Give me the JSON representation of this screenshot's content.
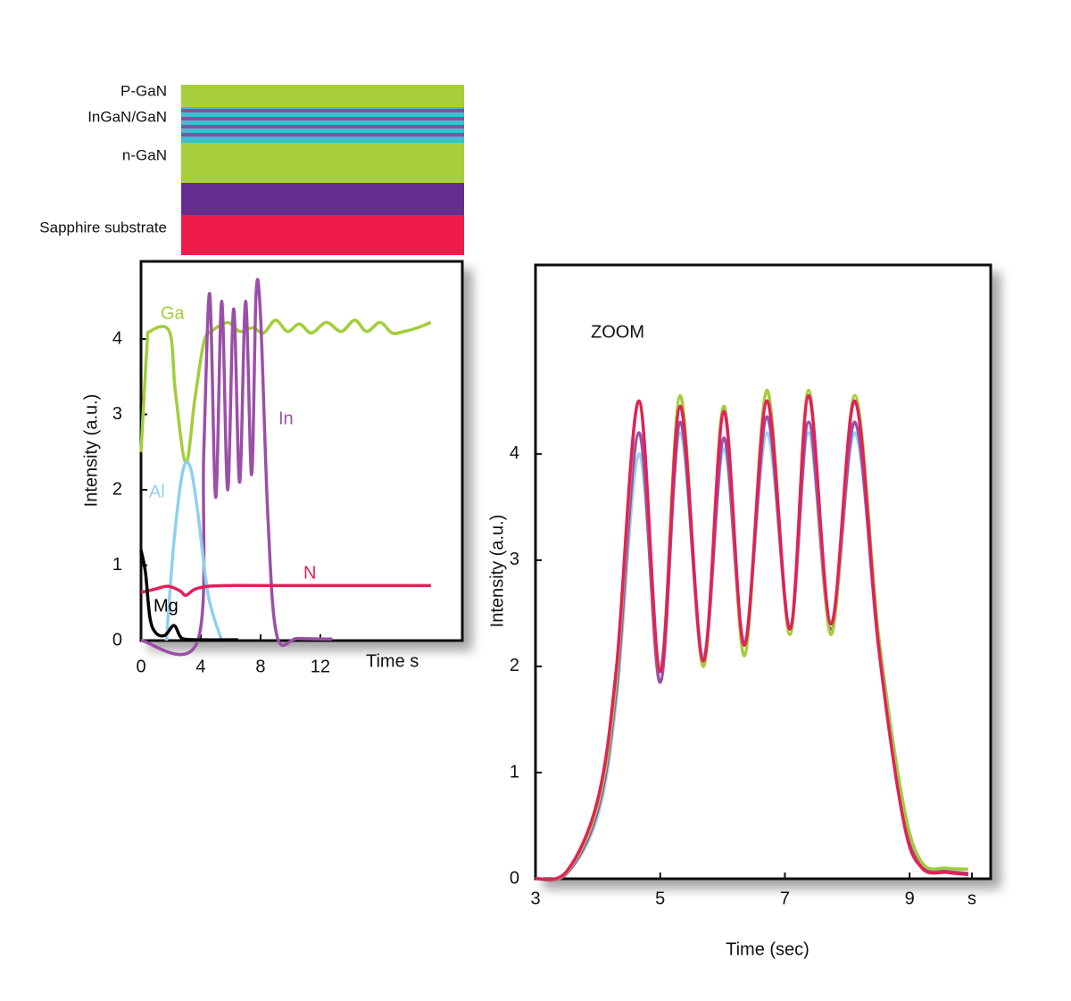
{
  "layers": {
    "labels": [
      "P-GaN",
      "InGaN/GaN",
      "n-GaN",
      "Sapphire substrate"
    ]
  },
  "chart_data": [
    {
      "type": "line",
      "x_label": "Time s",
      "y_label": "Intensity (a.u.)",
      "xlim": [
        0,
        21.5
      ],
      "ylim": [
        0,
        5.03
      ],
      "xticks": [
        0,
        4,
        8,
        12
      ],
      "yticks": [
        0,
        1,
        2,
        3,
        4
      ],
      "series": [
        {
          "name": "Ga",
          "color": "#a2cd3a",
          "x": [
            0,
            0.4,
            0.6,
            1.9,
            2.3,
            3.0,
            3.6,
            4.2,
            4.7,
            5.8,
            6.6,
            7.5,
            8.2,
            9.0,
            9.8,
            10.6,
            11.4,
            12.4,
            13.4,
            14.3,
            15.1,
            16.0,
            16.8,
            17.6,
            18.5,
            19.4
          ],
          "values": [
            2.5,
            3.9,
            4.1,
            4.1,
            3.3,
            2.36,
            3.2,
            3.95,
            4.1,
            4.22,
            4.1,
            4.15,
            4.08,
            4.25,
            4.1,
            4.2,
            4.08,
            4.22,
            4.1,
            4.25,
            4.1,
            4.22,
            4.08,
            4.1,
            4.15,
            4.22
          ]
        },
        {
          "name": "In",
          "color": "#9b4fa8",
          "x": [
            0,
            3.8,
            4.2,
            4.6,
            5.0,
            5.4,
            5.8,
            6.2,
            6.6,
            7.0,
            7.4,
            7.7,
            8.0,
            8.5,
            9.1,
            10.5,
            12.8
          ],
          "values": [
            0,
            0,
            2.5,
            4.6,
            1.9,
            4.5,
            2.0,
            4.4,
            2.1,
            4.5,
            2.2,
            4.6,
            4.3,
            1.6,
            0.06,
            0.03,
            0.02
          ]
        },
        {
          "name": "Al",
          "color": "#8fd0ef",
          "x": [
            1.7,
            2.2,
            2.8,
            3.3,
            3.8,
            4.5,
            5.4
          ],
          "values": [
            0,
            1.3,
            2.25,
            2.3,
            1.7,
            0.6,
            0
          ]
        },
        {
          "name": "N",
          "color": "#e2205a",
          "x": [
            0,
            0.9,
            1.8,
            2.6,
            3.0,
            3.6,
            4.5,
            6.0,
            10,
            19.4
          ],
          "values": [
            0.64,
            0.68,
            0.72,
            0.66,
            0.6,
            0.68,
            0.72,
            0.73,
            0.73,
            0.73
          ]
        },
        {
          "name": "Mg",
          "color": "#000000",
          "x": [
            0,
            0.3,
            0.6,
            1.0,
            1.6,
            2.2,
            2.6,
            2.9,
            4.0,
            6.5
          ],
          "values": [
            1.2,
            0.9,
            0.3,
            0.1,
            0.07,
            0.2,
            0.06,
            0.02,
            0.01,
            0.01
          ]
        }
      ]
    },
    {
      "type": "line",
      "title": "ZOOM",
      "x_label": "Time (sec)",
      "y_label": "Intensity (a.u.)",
      "xlim": [
        3,
        10.3
      ],
      "ylim": [
        0,
        5.78
      ],
      "xticks": [
        3,
        5,
        7,
        9,
        {
          "value": 10,
          "label": "s"
        }
      ],
      "yticks": [
        0,
        1,
        2,
        3,
        4
      ],
      "x": [
        3,
        3.5,
        4,
        4.3,
        4.66,
        5.0,
        5.32,
        5.69,
        6.02,
        6.35,
        6.71,
        7.08,
        7.38,
        7.74,
        8.12,
        8.5,
        8.9,
        9.2,
        9.6,
        9.94
      ],
      "series": [
        {
          "color": "#9fd3ea",
          "values": [
            0,
            0.05,
            0.6,
            1.7,
            4.0,
            2.0,
            4.2,
            2.1,
            4.05,
            2.25,
            4.2,
            2.4,
            4.2,
            2.4,
            4.2,
            2.3,
            0.7,
            0.15,
            0.08,
            0.05
          ]
        },
        {
          "color": "#9b4fa8",
          "values": [
            0,
            0.05,
            0.65,
            1.8,
            4.2,
            1.85,
            4.3,
            2.05,
            4.15,
            2.2,
            4.35,
            2.35,
            4.3,
            2.35,
            4.3,
            2.2,
            0.6,
            0.12,
            0.07,
            0.05
          ]
        },
        {
          "color": "#a2cd3a",
          "values": [
            0,
            0.06,
            0.7,
            1.9,
            4.5,
            1.95,
            4.55,
            2.0,
            4.45,
            2.1,
            4.6,
            2.3,
            4.6,
            2.3,
            4.55,
            2.3,
            0.7,
            0.15,
            0.1,
            0.09
          ]
        },
        {
          "color": "#e2205a",
          "values": [
            0,
            0.07,
            0.75,
            2.0,
            4.5,
            1.95,
            4.45,
            2.05,
            4.4,
            2.2,
            4.5,
            2.35,
            4.55,
            2.4,
            4.5,
            2.2,
            0.55,
            0.1,
            0.06,
            0.04
          ]
        }
      ]
    }
  ]
}
